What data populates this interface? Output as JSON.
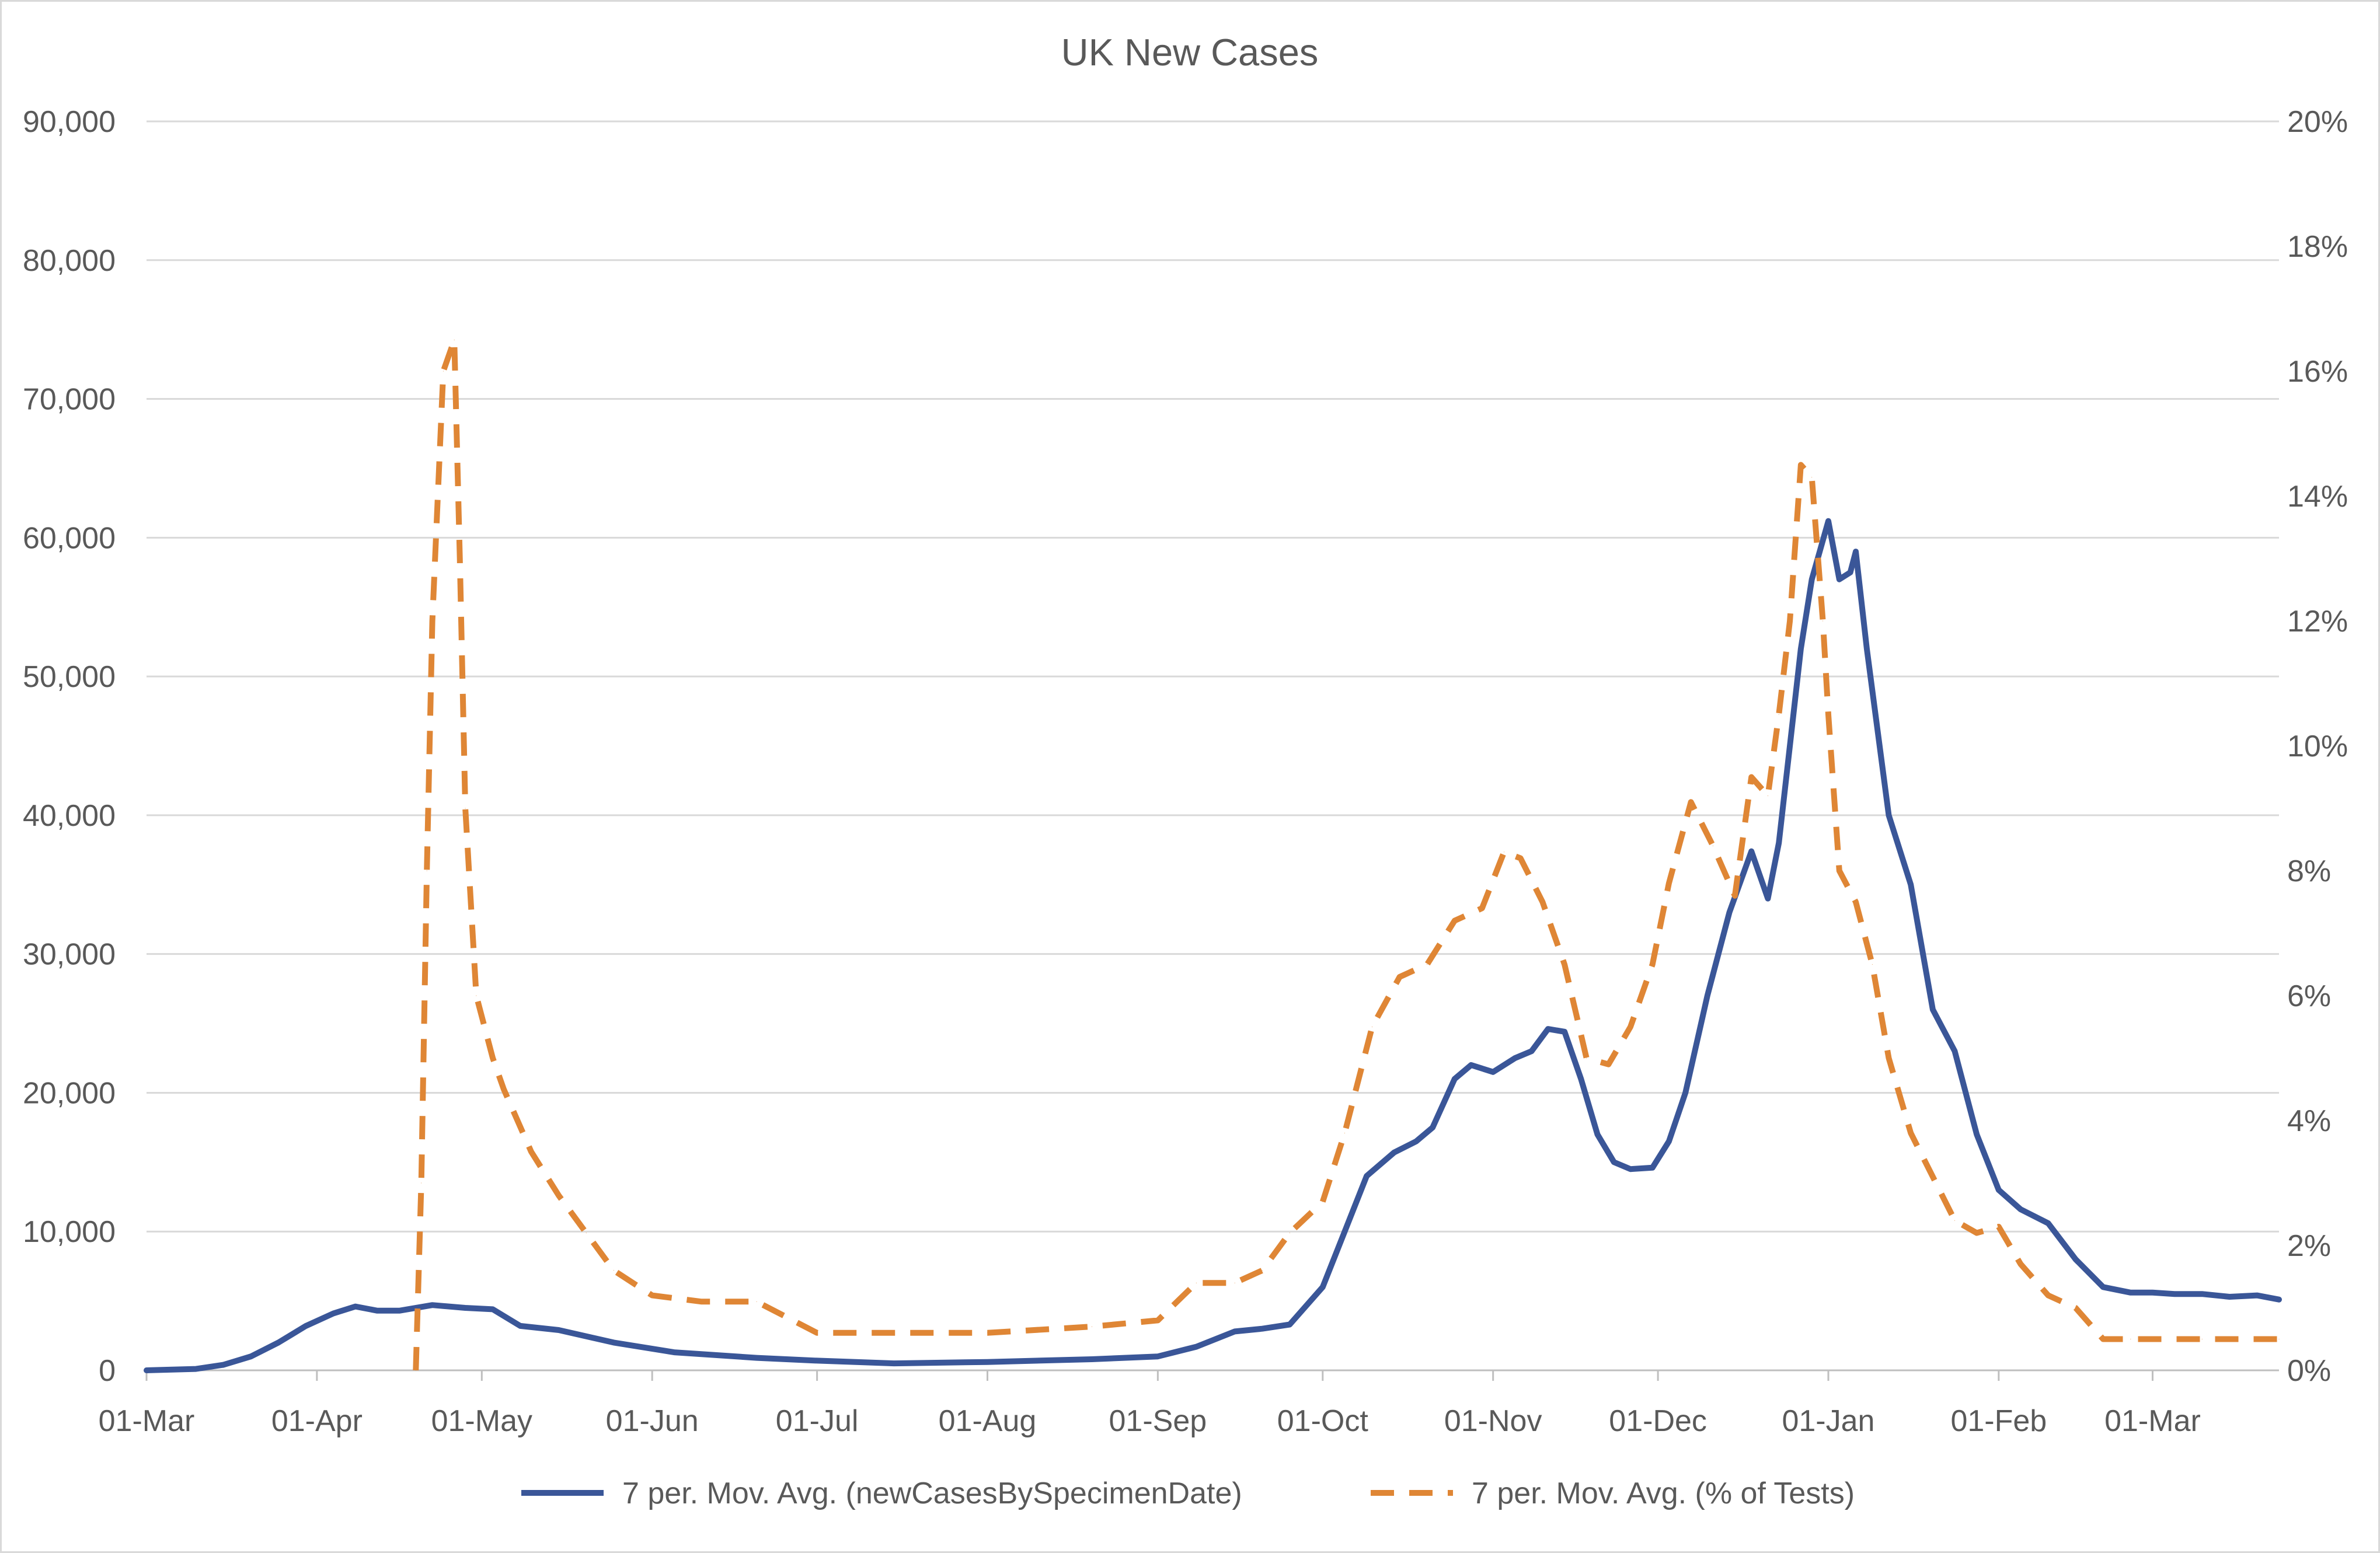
{
  "chart_data": {
    "type": "line",
    "title": "UK New Cases",
    "xlabel": "",
    "ylabel": "",
    "y2label": "",
    "x_tick_labels": [
      "01-Mar",
      "01-Apr",
      "01-May",
      "01-Jun",
      "01-Jul",
      "01-Aug",
      "01-Sep",
      "01-Oct",
      "01-Nov",
      "01-Dec",
      "01-Jan",
      "01-Feb",
      "01-Mar"
    ],
    "x_ticks": [
      "2020-03-01",
      "2020-04-01",
      "2020-05-01",
      "2020-06-01",
      "2020-07-01",
      "2020-08-01",
      "2020-09-01",
      "2020-10-01",
      "2020-11-01",
      "2020-12-01",
      "2021-01-01",
      "2021-02-01",
      "2021-03-01"
    ],
    "xlim": [
      "2020-03-01",
      "2021-03-24"
    ],
    "ylim": [
      0,
      90000
    ],
    "y_ticks": [
      0,
      10000,
      20000,
      30000,
      40000,
      50000,
      60000,
      70000,
      80000,
      90000
    ],
    "y_tick_labels": [
      "0",
      "10,000",
      "20,000",
      "30,000",
      "40,000",
      "50,000",
      "60,000",
      "70,000",
      "80,000",
      "90,000"
    ],
    "y2lim": [
      0,
      20
    ],
    "y2_ticks": [
      0,
      2,
      4,
      6,
      8,
      10,
      12,
      14,
      16,
      18,
      20
    ],
    "y2_tick_labels": [
      "0%",
      "2%",
      "4%",
      "6%",
      "8%",
      "10%",
      "12%",
      "14%",
      "16%",
      "18%",
      "20%"
    ],
    "grid": true,
    "legend_position": "bottom",
    "series": [
      {
        "name": "7 per. Mov. Avg. (newCasesBySpecimenDate)",
        "axis": "left",
        "color": "#3a5698",
        "dash": "solid",
        "x": [
          "2020-03-01",
          "2020-03-10",
          "2020-03-15",
          "2020-03-20",
          "2020-03-25",
          "2020-03-30",
          "2020-04-04",
          "2020-04-08",
          "2020-04-12",
          "2020-04-16",
          "2020-04-22",
          "2020-04-28",
          "2020-05-03",
          "2020-05-08",
          "2020-05-15",
          "2020-05-25",
          "2020-06-05",
          "2020-06-20",
          "2020-07-01",
          "2020-07-15",
          "2020-08-01",
          "2020-08-20",
          "2020-09-01",
          "2020-09-08",
          "2020-09-15",
          "2020-09-20",
          "2020-09-25",
          "2020-10-01",
          "2020-10-05",
          "2020-10-09",
          "2020-10-14",
          "2020-10-18",
          "2020-10-21",
          "2020-10-25",
          "2020-10-28",
          "2020-11-01",
          "2020-11-05",
          "2020-11-08",
          "2020-11-11",
          "2020-11-14",
          "2020-11-17",
          "2020-11-20",
          "2020-11-23",
          "2020-11-26",
          "2020-11-30",
          "2020-12-03",
          "2020-12-06",
          "2020-12-10",
          "2020-12-14",
          "2020-12-18",
          "2020-12-21",
          "2020-12-23",
          "2020-12-25",
          "2020-12-27",
          "2020-12-29",
          "2021-01-01",
          "2021-01-03",
          "2021-01-05",
          "2021-01-06",
          "2021-01-08",
          "2021-01-12",
          "2021-01-16",
          "2021-01-20",
          "2021-01-24",
          "2021-01-28",
          "2021-02-01",
          "2021-02-05",
          "2021-02-10",
          "2021-02-15",
          "2021-02-20",
          "2021-02-25",
          "2021-03-01",
          "2021-03-05",
          "2021-03-10",
          "2021-03-15",
          "2021-03-20",
          "2021-03-24"
        ],
        "y": [
          0,
          100,
          400,
          1000,
          2000,
          3200,
          4100,
          4600,
          4300,
          4300,
          4700,
          4500,
          4400,
          3200,
          2900,
          2000,
          1300,
          900,
          700,
          500,
          600,
          800,
          1000,
          1700,
          2800,
          3000,
          3300,
          6000,
          10000,
          14000,
          15700,
          16500,
          17500,
          21000,
          22000,
          21500,
          22500,
          23000,
          24600,
          24400,
          21000,
          17000,
          15000,
          14500,
          14600,
          16500,
          20000,
          27000,
          33000,
          37400,
          34000,
          38000,
          45000,
          52000,
          57000,
          61200,
          57000,
          57500,
          59000,
          52000,
          40000,
          35000,
          26000,
          23000,
          17000,
          13000,
          11600,
          10600,
          8000,
          6000,
          5600,
          5600,
          5500,
          5500,
          5300,
          5400,
          5100
        ]
      },
      {
        "name": "7 per. Mov. Avg. (% of Tests)",
        "axis": "right",
        "color": "#df8635",
        "dash": "dashed",
        "x": [
          "2020-04-19",
          "2020-04-20",
          "2020-04-21",
          "2020-04-22",
          "2020-04-24",
          "2020-04-26",
          "2020-04-27",
          "2020-04-28",
          "2020-04-30",
          "2020-05-03",
          "2020-05-05",
          "2020-05-10",
          "2020-05-15",
          "2020-05-20",
          "2020-05-25",
          "2020-06-01",
          "2020-06-10",
          "2020-06-20",
          "2020-07-01",
          "2020-07-15",
          "2020-08-01",
          "2020-08-20",
          "2020-09-01",
          "2020-09-08",
          "2020-09-15",
          "2020-09-20",
          "2020-09-25",
          "2020-10-01",
          "2020-10-05",
          "2020-10-10",
          "2020-10-15",
          "2020-10-20",
          "2020-10-25",
          "2020-10-30",
          "2020-11-03",
          "2020-11-06",
          "2020-11-10",
          "2020-11-14",
          "2020-11-18",
          "2020-11-22",
          "2020-11-26",
          "2020-11-30",
          "2020-12-03",
          "2020-12-07",
          "2020-12-11",
          "2020-12-15",
          "2020-12-18",
          "2020-12-21",
          "2020-12-23",
          "2020-12-25",
          "2020-12-27",
          "2020-12-29",
          "2020-12-31",
          "2021-01-01",
          "2021-01-03",
          "2021-01-06",
          "2021-01-09",
          "2021-01-12",
          "2021-01-16",
          "2021-01-20",
          "2021-01-24",
          "2021-01-28",
          "2021-02-01",
          "2021-02-05",
          "2021-02-10",
          "2021-02-15",
          "2021-02-20",
          "2021-02-25",
          "2021-03-01",
          "2021-03-06",
          "2021-03-10",
          "2021-03-15",
          "2021-03-20",
          "2021-03-24"
        ],
        "y": [
          0,
          3,
          8,
          12,
          16,
          16.5,
          13,
          9,
          6,
          5,
          4.5,
          3.5,
          2.8,
          2.2,
          1.6,
          1.2,
          1.1,
          1.1,
          0.6,
          0.6,
          0.6,
          0.7,
          0.8,
          1.4,
          1.4,
          1.6,
          2.2,
          2.7,
          3.8,
          5.5,
          6.3,
          6.5,
          7.2,
          7.4,
          8.3,
          8.2,
          7.5,
          6.5,
          5,
          4.9,
          5.5,
          6.5,
          7.8,
          9.1,
          8.4,
          7.6,
          9.5,
          9.2,
          10.5,
          12,
          14.5,
          14.3,
          12,
          10.5,
          8,
          7.5,
          6.5,
          5,
          3.8,
          3.1,
          2.4,
          2.2,
          2.3,
          1.7,
          1.2,
          1,
          0.5,
          0.5,
          0.5,
          0.5,
          0.5,
          0.5,
          0.5,
          0.5
        ]
      }
    ]
  }
}
